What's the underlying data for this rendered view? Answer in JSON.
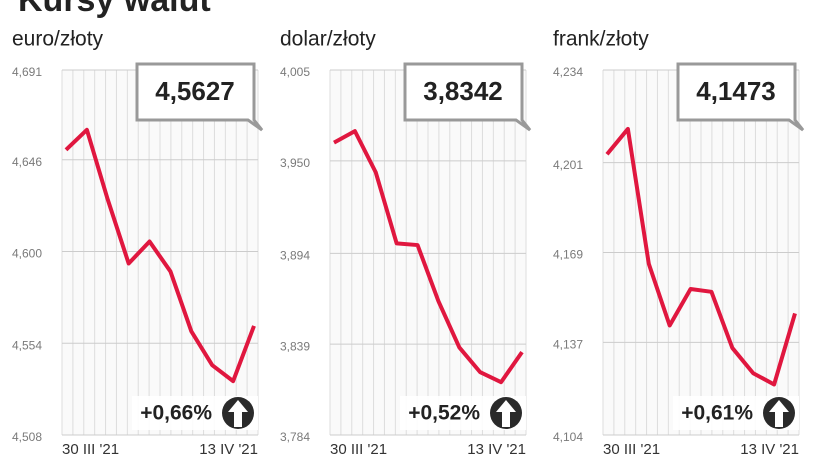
{
  "title": "Kursy walut",
  "chart_data": [
    {
      "type": "line",
      "title": "euro/złoty",
      "color": "#e0173f",
      "categories": [
        "30 III '21",
        null,
        null,
        null,
        null,
        null,
        null,
        null,
        null,
        "13 IV '21"
      ],
      "values": [
        4.651,
        4.661,
        4.626,
        4.594,
        4.605,
        4.59,
        4.56,
        4.543,
        4.535,
        4.5627
      ],
      "value_labels": [
        null,
        null,
        null,
        null,
        null,
        null,
        null,
        null,
        null,
        "4,5627"
      ],
      "annotation": "+0,66%",
      "ylim": [
        4.508,
        4.691
      ],
      "yticks": [
        {
          "value": 4.508,
          "label": "4,508"
        },
        {
          "value": 4.554,
          "label": "4,554"
        },
        {
          "value": 4.6,
          "label": "4,600"
        },
        {
          "value": 4.646,
          "label": "4,646"
        },
        {
          "value": 4.691,
          "label": "4,691"
        }
      ]
    },
    {
      "type": "line",
      "title": "dolar/złoty",
      "color": "#e0173f",
      "categories": [
        "30 III '21",
        null,
        null,
        null,
        null,
        null,
        null,
        null,
        null,
        "13 IV '21"
      ],
      "values": [
        3.961,
        3.968,
        3.943,
        3.9,
        3.899,
        3.865,
        3.837,
        3.822,
        3.816,
        3.8342
      ],
      "value_labels": [
        null,
        null,
        null,
        null,
        null,
        null,
        null,
        null,
        null,
        "3,8342"
      ],
      "annotation": "+0,52%",
      "ylim": [
        3.784,
        4.005
      ],
      "yticks": [
        {
          "value": 3.784,
          "label": "3,784"
        },
        {
          "value": 3.839,
          "label": "3,839"
        },
        {
          "value": 3.894,
          "label": "3,894"
        },
        {
          "value": 3.95,
          "label": "3,950"
        },
        {
          "value": 4.005,
          "label": "4,005"
        }
      ]
    },
    {
      "type": "line",
      "title": "frank/złoty",
      "color": "#e0173f",
      "categories": [
        "30 III '21",
        null,
        null,
        null,
        null,
        null,
        null,
        null,
        null,
        "13 IV '21"
      ],
      "values": [
        4.204,
        4.213,
        4.165,
        4.143,
        4.156,
        4.155,
        4.135,
        4.126,
        4.122,
        4.1473
      ],
      "value_labels": [
        null,
        null,
        null,
        null,
        null,
        null,
        null,
        null,
        null,
        "4,1473"
      ],
      "annotation": "+0,61%",
      "ylim": [
        4.104,
        4.234
      ],
      "yticks": [
        {
          "value": 4.104,
          "label": "4,104"
        },
        {
          "value": 4.137,
          "label": "4,137"
        },
        {
          "value": 4.169,
          "label": "4,169"
        },
        {
          "value": 4.201,
          "label": "4,201"
        },
        {
          "value": 4.234,
          "label": "4,234"
        }
      ]
    }
  ]
}
